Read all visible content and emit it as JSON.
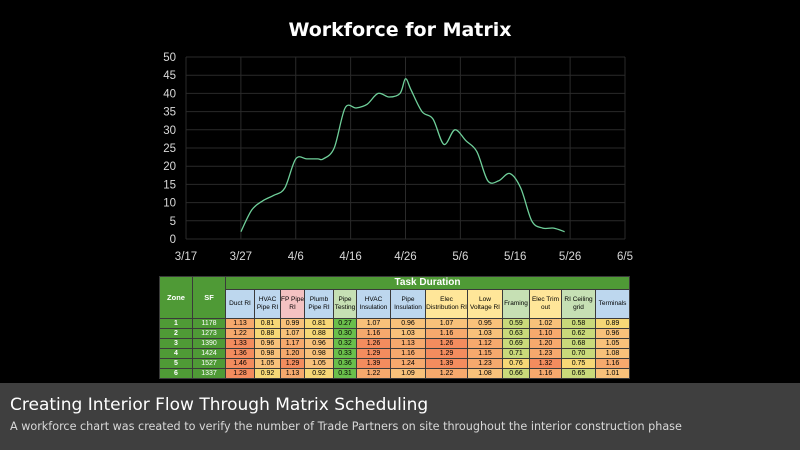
{
  "chart_data": {
    "type": "line",
    "title": "Workforce for Matrix",
    "x_ticks": [
      "3/17",
      "3/27",
      "4/6",
      "4/16",
      "4/26",
      "5/6",
      "5/16",
      "5/26",
      "6/5"
    ],
    "y_ticks": [
      "0",
      "5",
      "10",
      "15",
      "20",
      "25",
      "30",
      "35",
      "40",
      "45",
      "50"
    ],
    "xlim": [
      "2023-03-17",
      "2023-06-05"
    ],
    "ylim": [
      0,
      50
    ],
    "grid": true,
    "line_color": "#6fcf9a",
    "series": [
      {
        "x": [
          "2023-03-27",
          "2023-03-29",
          "2023-03-31",
          "2023-04-02",
          "2023-04-04",
          "2023-04-06",
          "2023-04-08",
          "2023-04-10",
          "2023-04-11",
          "2023-04-13",
          "2023-04-15",
          "2023-04-17",
          "2023-04-19",
          "2023-04-21",
          "2023-04-23",
          "2023-04-25",
          "2023-04-26",
          "2023-04-27",
          "2023-04-29",
          "2023-05-01",
          "2023-05-03",
          "2023-05-05",
          "2023-05-07",
          "2023-05-09",
          "2023-05-11",
          "2023-05-13",
          "2023-05-15",
          "2023-05-17",
          "2023-05-19",
          "2023-05-21",
          "2023-05-23",
          "2023-05-25"
        ],
        "y": [
          2,
          8,
          10.5,
          12,
          14,
          22,
          22,
          22,
          22,
          25,
          36,
          36,
          37,
          40,
          39,
          40,
          44,
          41,
          35,
          33,
          26,
          30,
          27,
          24,
          16,
          16,
          18,
          14,
          5,
          3,
          3,
          2
        ]
      }
    ]
  },
  "table": {
    "task_duration_label": "Task Duration",
    "zone_label": "Zone",
    "sf_label": "SF",
    "columns": [
      {
        "label": "Duct RI",
        "color": "#bdd7ee"
      },
      {
        "label": "HVAC Pipe RI",
        "color": "#bdd7ee"
      },
      {
        "label": "FP Pipe RI",
        "color": "#f4c2c2"
      },
      {
        "label": "Plumb Pipe RI",
        "color": "#bdd7ee"
      },
      {
        "label": "Pipe Testing",
        "color": "#c6e0b4"
      },
      {
        "label": "HVAC Insulation",
        "color": "#bdd7ee"
      },
      {
        "label": "Pipe Insulation",
        "color": "#bdd7ee"
      },
      {
        "label": "Elec Distribution RI",
        "color": "#ffe699"
      },
      {
        "label": "Low Voltage RI",
        "color": "#ffe699"
      },
      {
        "label": "Framing",
        "color": "#c6e0b4"
      },
      {
        "label": "Elec Trim out",
        "color": "#ffe699"
      },
      {
        "label": "RI Ceiling grid",
        "color": "#c6e0b4"
      },
      {
        "label": "Terminals",
        "color": "#bdd7ee"
      }
    ],
    "rows": [
      {
        "zone": "1",
        "sf": "1178",
        "values": [
          "1.13",
          "0.81",
          "0.99",
          "0.81",
          "0.27",
          "1.07",
          "0.96",
          "1.07",
          "0.95",
          "0.59",
          "1.02",
          "0.58",
          "0.89"
        ]
      },
      {
        "zone": "2",
        "sf": "1273",
        "values": [
          "1.22",
          "0.88",
          "1.07",
          "0.88",
          "0.30",
          "1.16",
          "1.03",
          "1.16",
          "1.03",
          "0.63",
          "1.10",
          "0.62",
          "0.96"
        ]
      },
      {
        "zone": "3",
        "sf": "1390",
        "values": [
          "1.33",
          "0.96",
          "1.17",
          "0.96",
          "0.32",
          "1.26",
          "1.13",
          "1.26",
          "1.12",
          "0.69",
          "1.20",
          "0.68",
          "1.05"
        ]
      },
      {
        "zone": "4",
        "sf": "1424",
        "values": [
          "1.36",
          "0.98",
          "1.20",
          "0.98",
          "0.33",
          "1.29",
          "1.16",
          "1.29",
          "1.15",
          "0.71",
          "1.23",
          "0.70",
          "1.08"
        ]
      },
      {
        "zone": "5",
        "sf": "1527",
        "values": [
          "1.46",
          "1.05",
          "1.29",
          "1.05",
          "0.36",
          "1.39",
          "1.24",
          "1.39",
          "1.23",
          "0.76",
          "1.32",
          "0.75",
          "1.16"
        ]
      },
      {
        "zone": "6",
        "sf": "1337",
        "values": [
          "1.28",
          "0.92",
          "1.13",
          "0.92",
          "0.31",
          "1.22",
          "1.09",
          "1.22",
          "1.08",
          "0.66",
          "1.16",
          "0.65",
          "1.01"
        ]
      }
    ]
  },
  "caption": {
    "title": "Creating Interior Flow Through Matrix Scheduling",
    "subtitle": "A workforce chart was created to verify the number of Trade Partners on site throughout the interior construction phase"
  }
}
